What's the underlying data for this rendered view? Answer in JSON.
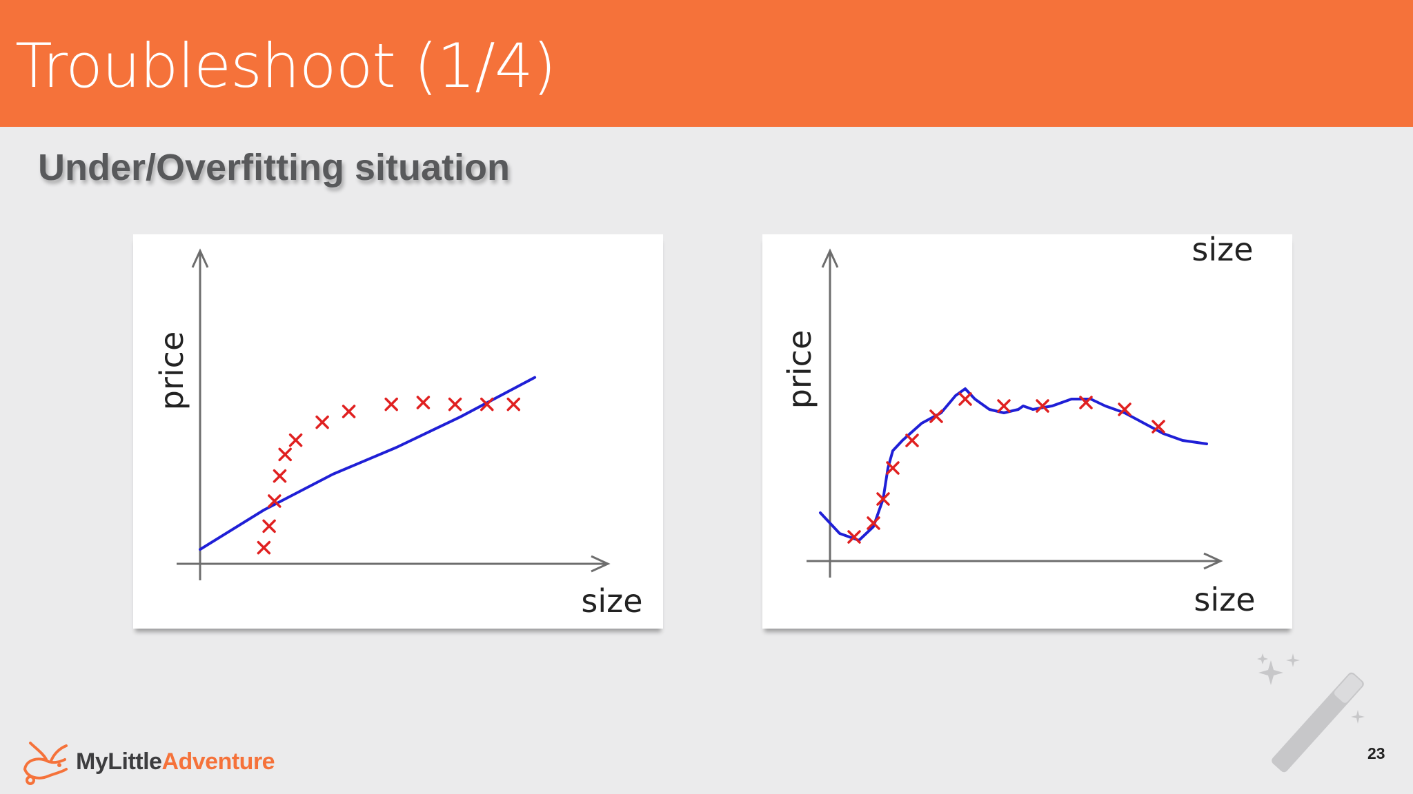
{
  "slide": {
    "title": "Troubleshoot (1/4)",
    "subtitle": "Under/Overfitting situation",
    "page_number": "23",
    "accent_color": "#f5723a"
  },
  "logo": {
    "part1": "MyLittle",
    "part2": "Adventure",
    "icon": "rabbit-logo-icon"
  },
  "decoration": {
    "icon": "magic-wand-icon"
  },
  "chart_data": [
    {
      "type": "scatter",
      "ylabel": "price",
      "xlabel": "size",
      "x": [
        1.2,
        1.3,
        1.4,
        1.5,
        1.6,
        1.8,
        2.3,
        2.8,
        3.6,
        4.2,
        4.8,
        5.4,
        5.9
      ],
      "y": [
        0.45,
        1.05,
        1.75,
        2.45,
        3.05,
        3.45,
        3.95,
        4.25,
        4.45,
        4.5,
        4.45,
        4.45,
        4.45
      ],
      "fit": {
        "color": "#1f1fd6",
        "x": [
          0,
          1.2,
          2.5,
          3.7,
          4.9,
          6.3
        ],
        "y": [
          0.4,
          1.5,
          2.5,
          3.25,
          4.1,
          5.2
        ]
      },
      "marker_color": "#e02020",
      "grid": false
    },
    {
      "type": "scatter",
      "ylabel": "price",
      "xlabel": "size",
      "extra_label": "size",
      "x": [
        0.5,
        0.9,
        1.1,
        1.3,
        1.7,
        2.2,
        2.8,
        3.6,
        4.4,
        5.3,
        6.1,
        6.8
      ],
      "y": [
        0.7,
        1.1,
        1.8,
        2.7,
        3.5,
        4.2,
        4.7,
        4.5,
        4.5,
        4.6,
        4.4,
        3.9
      ],
      "fit": {
        "color": "#1f1fd6",
        "x": [
          -0.2,
          0.2,
          0.6,
          0.9,
          1.1,
          1.2,
          1.3,
          1.5,
          1.9,
          2.3,
          2.6,
          2.8,
          3.0,
          3.3,
          3.6,
          3.9,
          4.0,
          4.2,
          4.6,
          5.0,
          5.4,
          5.7,
          6.1,
          6.5,
          6.9,
          7.3,
          7.8
        ],
        "y": [
          1.4,
          0.8,
          0.6,
          1.0,
          1.8,
          2.7,
          3.2,
          3.5,
          4.0,
          4.3,
          4.8,
          5.0,
          4.7,
          4.4,
          4.3,
          4.4,
          4.5,
          4.4,
          4.5,
          4.7,
          4.7,
          4.5,
          4.3,
          4.0,
          3.7,
          3.5,
          3.4
        ]
      },
      "marker_color": "#e02020",
      "grid": false
    }
  ]
}
